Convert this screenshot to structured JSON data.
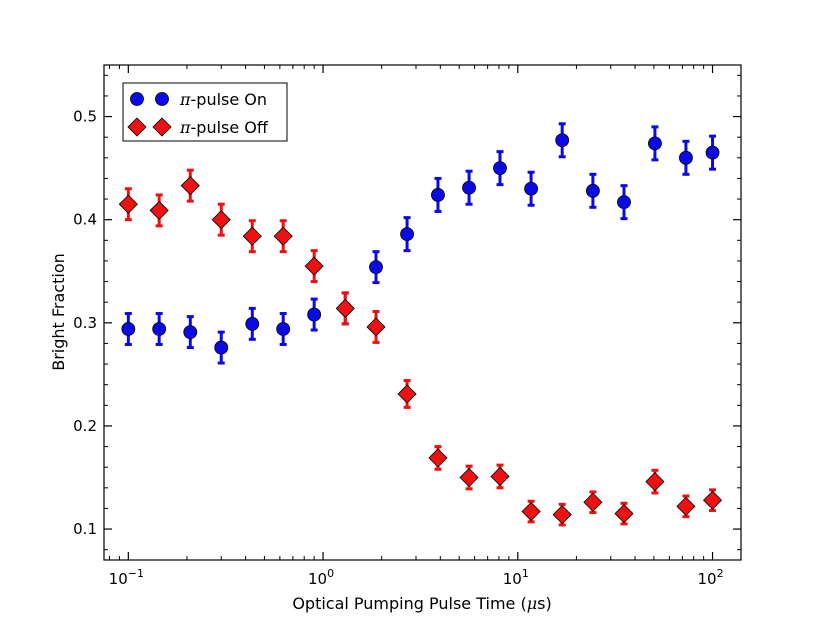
{
  "chart_data": {
    "type": "scatter",
    "title": "",
    "xlabel": "Optical Pumping Pulse Time (μs)",
    "xlabel_prefix": "Optical Pumping Pulse Time (",
    "xlabel_mu": "μ",
    "xlabel_suffix": "s)",
    "ylabel": "Bright Fraction",
    "xscale": "log",
    "xlim": [
      0.075,
      140
    ],
    "ylim": [
      0.07,
      0.55
    ],
    "xticks": [
      {
        "value": 0.1,
        "base": "10",
        "exp": "−1"
      },
      {
        "value": 1,
        "base": "10",
        "exp": "0"
      },
      {
        "value": 10,
        "base": "10",
        "exp": "1"
      },
      {
        "value": 100,
        "base": "10",
        "exp": "2"
      }
    ],
    "yticks": [
      {
        "value": 0.1,
        "label": "0.1"
      },
      {
        "value": 0.2,
        "label": "0.2"
      },
      {
        "value": 0.3,
        "label": "0.3"
      },
      {
        "value": 0.4,
        "label": "0.4"
      },
      {
        "value": 0.5,
        "label": "0.5"
      }
    ],
    "legend_position": "top-left",
    "series": [
      {
        "name": "π-pulse On",
        "name_prefix": "π",
        "name_suffix": "-pulse On",
        "marker": "circle",
        "color": "#0a0ae6",
        "x": [
          0.1,
          0.144,
          0.208,
          0.3,
          0.433,
          0.624,
          0.9,
          1.3,
          1.87,
          2.7,
          3.89,
          5.62,
          8.1,
          11.7,
          16.9,
          24.3,
          35.1,
          50.6,
          73.0,
          100
        ],
        "y": [
          0.294,
          0.294,
          0.291,
          0.276,
          0.299,
          0.294,
          0.308,
          0.314,
          0.354,
          0.386,
          0.424,
          0.431,
          0.45,
          0.43,
          0.477,
          0.428,
          0.417,
          0.474,
          0.46,
          0.465
        ],
        "err": [
          0.015,
          0.015,
          0.015,
          0.015,
          0.015,
          0.015,
          0.015,
          0.015,
          0.015,
          0.016,
          0.016,
          0.016,
          0.016,
          0.016,
          0.016,
          0.016,
          0.016,
          0.016,
          0.016,
          0.016
        ]
      },
      {
        "name": "π-pulse Off",
        "name_prefix": "π",
        "name_suffix": "-pulse Off",
        "marker": "diamond",
        "color": "#ee1111",
        "x": [
          0.1,
          0.144,
          0.208,
          0.3,
          0.433,
          0.624,
          0.9,
          1.3,
          1.87,
          2.7,
          3.89,
          5.62,
          8.1,
          11.7,
          16.9,
          24.3,
          35.1,
          50.6,
          73.0,
          100
        ],
        "y": [
          0.415,
          0.409,
          0.433,
          0.4,
          0.384,
          0.384,
          0.355,
          0.314,
          0.296,
          0.231,
          0.169,
          0.15,
          0.151,
          0.117,
          0.114,
          0.126,
          0.115,
          0.146,
          0.122,
          0.128
        ],
        "err": [
          0.015,
          0.015,
          0.015,
          0.015,
          0.015,
          0.015,
          0.015,
          0.015,
          0.015,
          0.013,
          0.011,
          0.011,
          0.011,
          0.01,
          0.01,
          0.01,
          0.01,
          0.011,
          0.01,
          0.01
        ]
      }
    ]
  }
}
